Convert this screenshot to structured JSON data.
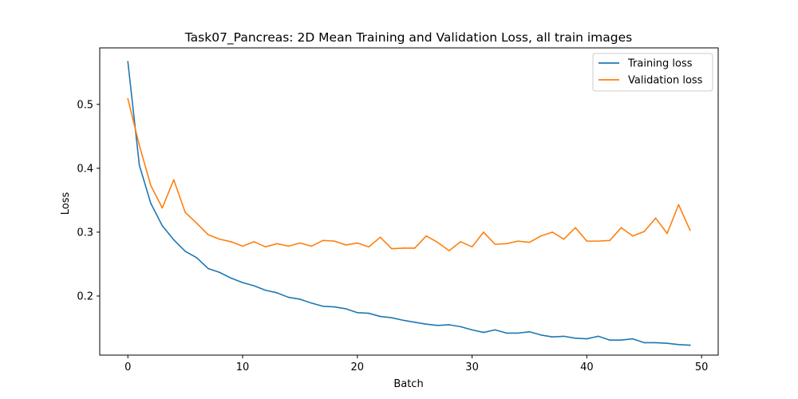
{
  "chart_data": {
    "type": "line",
    "title": "Task07_Pancreas: 2D Mean Training and Validation Loss, all train images",
    "xlabel": "Batch",
    "ylabel": "Loss",
    "xlim": [
      -2.45,
      51.45
    ],
    "ylim": [
      0.1075,
      0.5885
    ],
    "xticks": [
      0,
      10,
      20,
      30,
      40,
      50
    ],
    "yticks": [
      0.2,
      0.3,
      0.4,
      0.5
    ],
    "grid": false,
    "legend_position": "upper right",
    "x": [
      0,
      1,
      2,
      3,
      4,
      5,
      6,
      7,
      8,
      9,
      10,
      11,
      12,
      13,
      14,
      15,
      16,
      17,
      18,
      19,
      20,
      21,
      22,
      23,
      24,
      25,
      26,
      27,
      28,
      29,
      30,
      31,
      32,
      33,
      34,
      35,
      36,
      37,
      38,
      39,
      40,
      41,
      42,
      43,
      44,
      45,
      46,
      47,
      48,
      49
    ],
    "series": [
      {
        "name": "Training loss",
        "color": "#1f77b4",
        "values": [
          0.567,
          0.405,
          0.345,
          0.31,
          0.288,
          0.27,
          0.26,
          0.243,
          0.237,
          0.228,
          0.221,
          0.216,
          0.209,
          0.205,
          0.198,
          0.195,
          0.189,
          0.184,
          0.183,
          0.18,
          0.174,
          0.173,
          0.168,
          0.166,
          0.162,
          0.159,
          0.156,
          0.154,
          0.155,
          0.152,
          0.147,
          0.143,
          0.147,
          0.142,
          0.142,
          0.144,
          0.139,
          0.136,
          0.137,
          0.134,
          0.133,
          0.137,
          0.131,
          0.131,
          0.133,
          0.127,
          0.127,
          0.126,
          0.124,
          0.123
        ]
      },
      {
        "name": "Validation loss",
        "color": "#ff7f0e",
        "values": [
          0.509,
          0.436,
          0.373,
          0.338,
          0.382,
          0.331,
          0.314,
          0.296,
          0.289,
          0.285,
          0.278,
          0.285,
          0.277,
          0.282,
          0.278,
          0.283,
          0.278,
          0.287,
          0.286,
          0.28,
          0.283,
          0.277,
          0.292,
          0.274,
          0.275,
          0.275,
          0.294,
          0.284,
          0.271,
          0.285,
          0.277,
          0.3,
          0.281,
          0.282,
          0.286,
          0.284,
          0.294,
          0.3,
          0.289,
          0.307,
          0.286,
          0.286,
          0.287,
          0.307,
          0.294,
          0.301,
          0.322,
          0.298,
          0.343,
          0.303
        ]
      }
    ]
  }
}
